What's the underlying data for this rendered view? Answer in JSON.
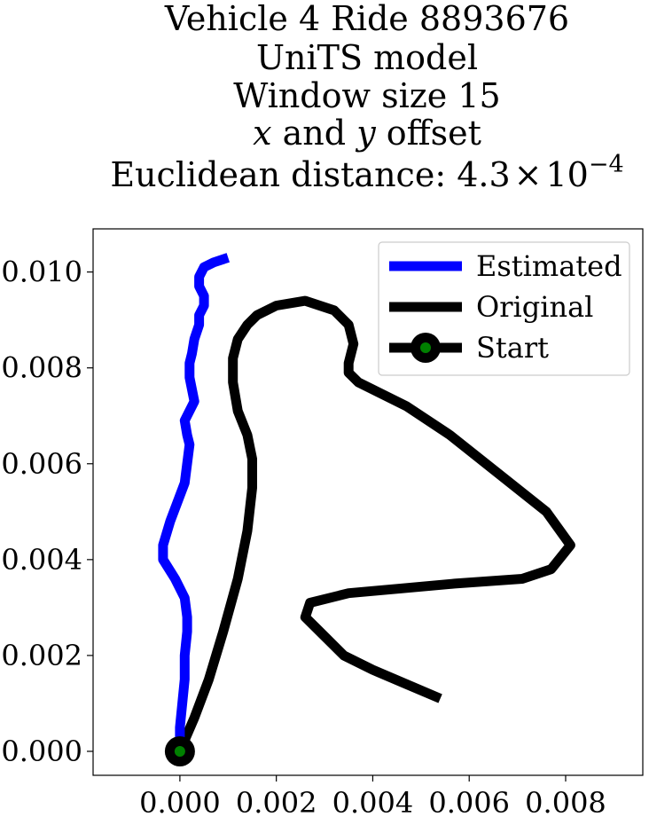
{
  "chart_data": {
    "type": "line",
    "title": "Vehicle 4 Ride 8893676",
    "title_lines": [
      "Vehicle 4 Ride 8893676",
      "UniTS model",
      "Window size 15"
    ],
    "title_offset_line": {
      "x_var": "x",
      "and_word": " and ",
      "y_var": "y",
      "suffix": " offset"
    },
    "title_distance_line": {
      "prefix": "Euclidean distance: ",
      "mantissa": "4.3",
      "times": "×",
      "base": "10",
      "exponent": "−4"
    },
    "xlabel": "",
    "ylabel": "",
    "xlim": [
      -0.0018,
      0.0096
    ],
    "ylim": [
      -0.0005,
      0.0109
    ],
    "x_ticks": [
      0.0,
      0.002,
      0.004,
      0.006,
      0.008
    ],
    "x_tick_labels": [
      "0.000",
      "0.002",
      "0.004",
      "0.006",
      "0.008"
    ],
    "y_ticks": [
      0.0,
      0.002,
      0.004,
      0.006,
      0.008,
      0.01
    ],
    "y_tick_labels": [
      "0.000",
      "0.002",
      "0.004",
      "0.006",
      "0.008",
      "0.010"
    ],
    "grid": false,
    "legend_position": "top-right",
    "series": [
      {
        "name": "Estimated",
        "color": "#0000ff",
        "x": [
          0.0,
          0.0,
          5e-05,
          0.0001,
          0.0001,
          0.00015,
          0.00015,
          0.0001,
          -0.0001,
          -0.00035,
          -0.00035,
          -0.0002,
          0.0001,
          0.0002,
          0.00015,
          0.0001,
          0.0003,
          0.0002,
          0.0002,
          0.00025,
          0.0003,
          0.0004,
          0.0004,
          0.0005,
          0.0005,
          0.0004,
          0.0004,
          0.0005,
          0.0007,
          0.001
        ],
        "y": [
          0.0,
          0.0005,
          0.001,
          0.0015,
          0.002,
          0.0025,
          0.0028,
          0.0032,
          0.0036,
          0.004,
          0.0043,
          0.0048,
          0.0056,
          0.0064,
          0.0066,
          0.0069,
          0.0073,
          0.0078,
          0.0081,
          0.0083,
          0.0086,
          0.0089,
          0.0091,
          0.0093,
          0.0095,
          0.0097,
          0.0099,
          0.0101,
          0.0102,
          0.0103
        ]
      },
      {
        "name": "Original",
        "color": "#000000",
        "x": [
          0.0,
          0.0003,
          0.0006,
          0.0009,
          0.0012,
          0.0014,
          0.0015,
          0.0015,
          0.0014,
          0.0012,
          0.0011,
          0.0011,
          0.0012,
          0.0014,
          0.0016,
          0.002,
          0.0026,
          0.0032,
          0.0035,
          0.0036,
          0.0035,
          0.0035,
          0.0037,
          0.0047,
          0.0056,
          0.0066,
          0.0076,
          0.0081,
          0.0077,
          0.0071,
          0.0057,
          0.0046,
          0.0035,
          0.0027,
          0.0026,
          0.003,
          0.0034,
          0.004,
          0.0047,
          0.0054
        ],
        "y": [
          0.0,
          0.0007,
          0.0015,
          0.0025,
          0.0036,
          0.0046,
          0.0055,
          0.0061,
          0.0066,
          0.0071,
          0.0077,
          0.0082,
          0.0086,
          0.0089,
          0.0091,
          0.0093,
          0.0094,
          0.0092,
          0.0089,
          0.0085,
          0.0081,
          0.0079,
          0.0077,
          0.0072,
          0.0066,
          0.0058,
          0.005,
          0.0043,
          0.0038,
          0.0036,
          0.0035,
          0.0034,
          0.0033,
          0.0031,
          0.0028,
          0.0024,
          0.002,
          0.0017,
          0.0014,
          0.0011
        ]
      }
    ],
    "start": {
      "name": "Start",
      "x": 0.0,
      "y": 0.0,
      "outer_color": "#000000",
      "inner_color": "#008000"
    },
    "legend": [
      {
        "label": "Estimated",
        "color": "#0000ff",
        "marker": false
      },
      {
        "label": "Original",
        "color": "#000000",
        "marker": false
      },
      {
        "label": "Start",
        "color": "#000000",
        "marker": true,
        "marker_color": "#008000"
      }
    ]
  }
}
